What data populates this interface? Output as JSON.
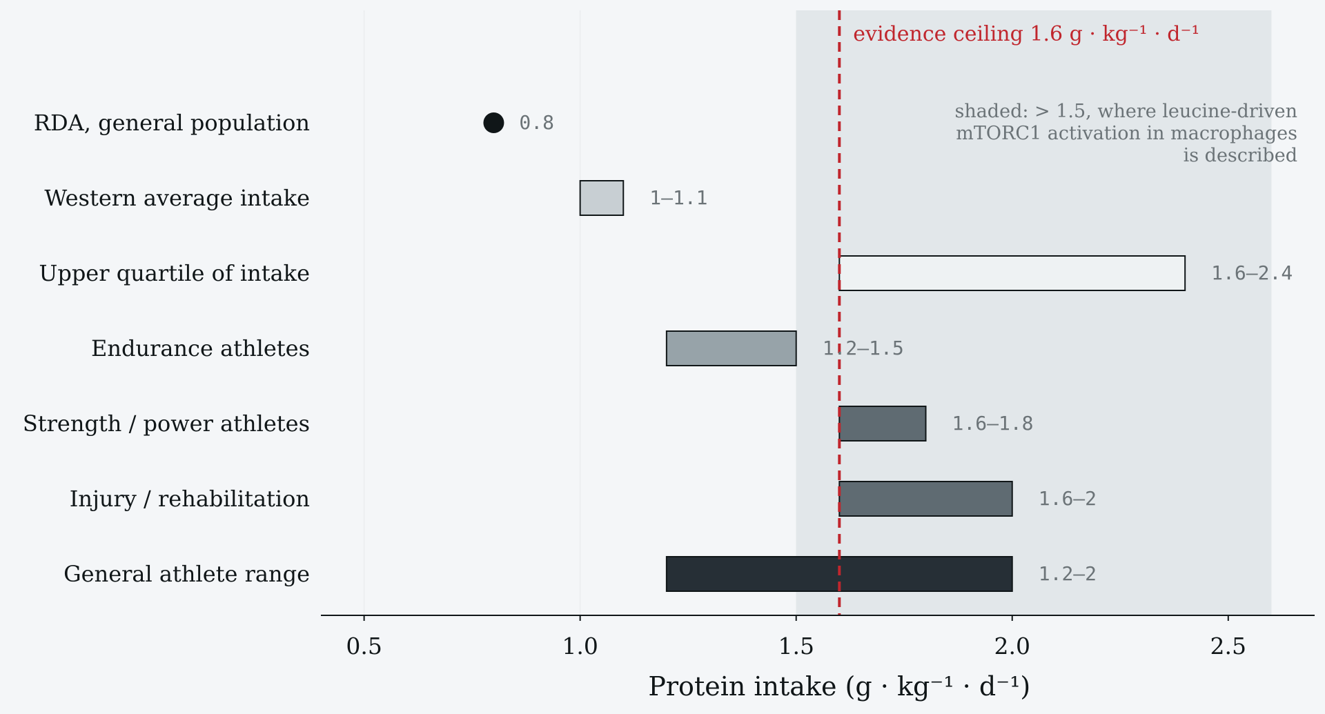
{
  "chart_data": {
    "type": "bar",
    "orientation": "horizontal",
    "xlabel": "Protein intake (g · kg⁻¹ · d⁻¹)",
    "xlim": [
      0.4,
      2.7
    ],
    "xticks": [
      0.5,
      1.0,
      1.5,
      2.0,
      2.5
    ],
    "xtick_labels": [
      "0.5",
      "1.0",
      "1.5",
      "2.0",
      "2.5"
    ],
    "grid": "vertical",
    "shaded_region": {
      "x_from": 1.5,
      "x_to": 2.6,
      "color": "#e2e7ea",
      "note_lines": [
        "shaded: > 1.5, where leucine-driven",
        "mTORC1 activation in macrophages",
        "is described"
      ],
      "note_color": "#6b7377"
    },
    "reference_line": {
      "x": 1.6,
      "label": "evidence ceiling 1.6 g · kg⁻¹ · d⁻¹",
      "color": "#c0262d"
    },
    "categories": [
      "RDA, general population",
      "Western average intake",
      "Upper quartile of intake",
      "Endurance athletes",
      "Strength / power athletes",
      "Injury / rehabilitation",
      "General athlete range"
    ],
    "series": [
      {
        "ranges": [
          {
            "low": 0.8,
            "high": 0.8,
            "point": true,
            "label": "0.8",
            "color": "#101618"
          },
          {
            "low": 1.0,
            "high": 1.1,
            "label": "1–1.1",
            "color": "#c8cfd3"
          },
          {
            "low": 1.6,
            "high": 2.4,
            "label": "1.6–2.4",
            "color": "#eef2f3"
          },
          {
            "low": 1.2,
            "high": 1.5,
            "label": "1.2–1.5",
            "color": "#97a3a9"
          },
          {
            "low": 1.6,
            "high": 1.8,
            "label": "1.6–1.8",
            "color": "#5f6b72"
          },
          {
            "low": 1.6,
            "high": 2.0,
            "label": "1.6–2",
            "color": "#5f6b72"
          },
          {
            "low": 1.2,
            "high": 2.0,
            "label": "1.2–2",
            "color": "#262f36"
          }
        ]
      }
    ],
    "colors": {
      "background": "#f4f6f8",
      "edge": "#101618",
      "value_label": "#6b7377",
      "grid": "#e6e9eb",
      "text": "#101618"
    }
  }
}
